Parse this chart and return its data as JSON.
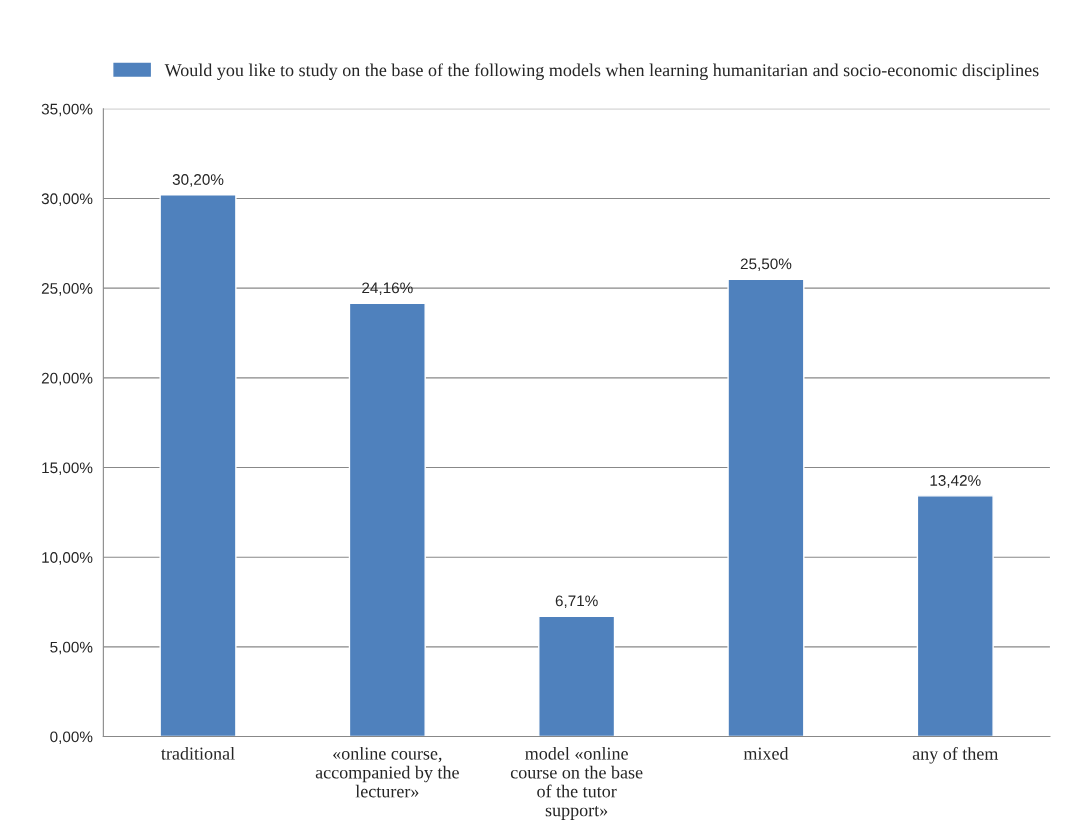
{
  "chart_data": {
    "type": "bar",
    "categories": [
      "traditional",
      "«online course, accompanied by the lecturer»",
      "model «online course on the base of the tutor support»",
      "mixed",
      "any of them"
    ],
    "series": [
      {
        "name": "Would you like to study on the base of the following models when learning humanitarian and socio-economic disciplines",
        "color": "#4f81bd",
        "values": [
          30.2,
          24.16,
          6.71,
          25.5,
          13.42
        ],
        "value_labels": [
          "30,20%",
          "24,16%",
          "6,71%",
          "25,50%",
          "13,42%"
        ]
      }
    ],
    "ylim": [
      0,
      35
    ],
    "yticks": [
      {
        "value": 0,
        "label": "0,00%"
      },
      {
        "value": 5,
        "label": "5,00%"
      },
      {
        "value": 10,
        "label": "10,00%"
      },
      {
        "value": 15,
        "label": "15,00%"
      },
      {
        "value": 20,
        "label": "20,00%"
      },
      {
        "value": 25,
        "label": "25,00%"
      },
      {
        "value": 30,
        "label": "30,00%"
      },
      {
        "value": 35,
        "label": "35,00%"
      }
    ],
    "grid": "y",
    "legend": "top"
  }
}
